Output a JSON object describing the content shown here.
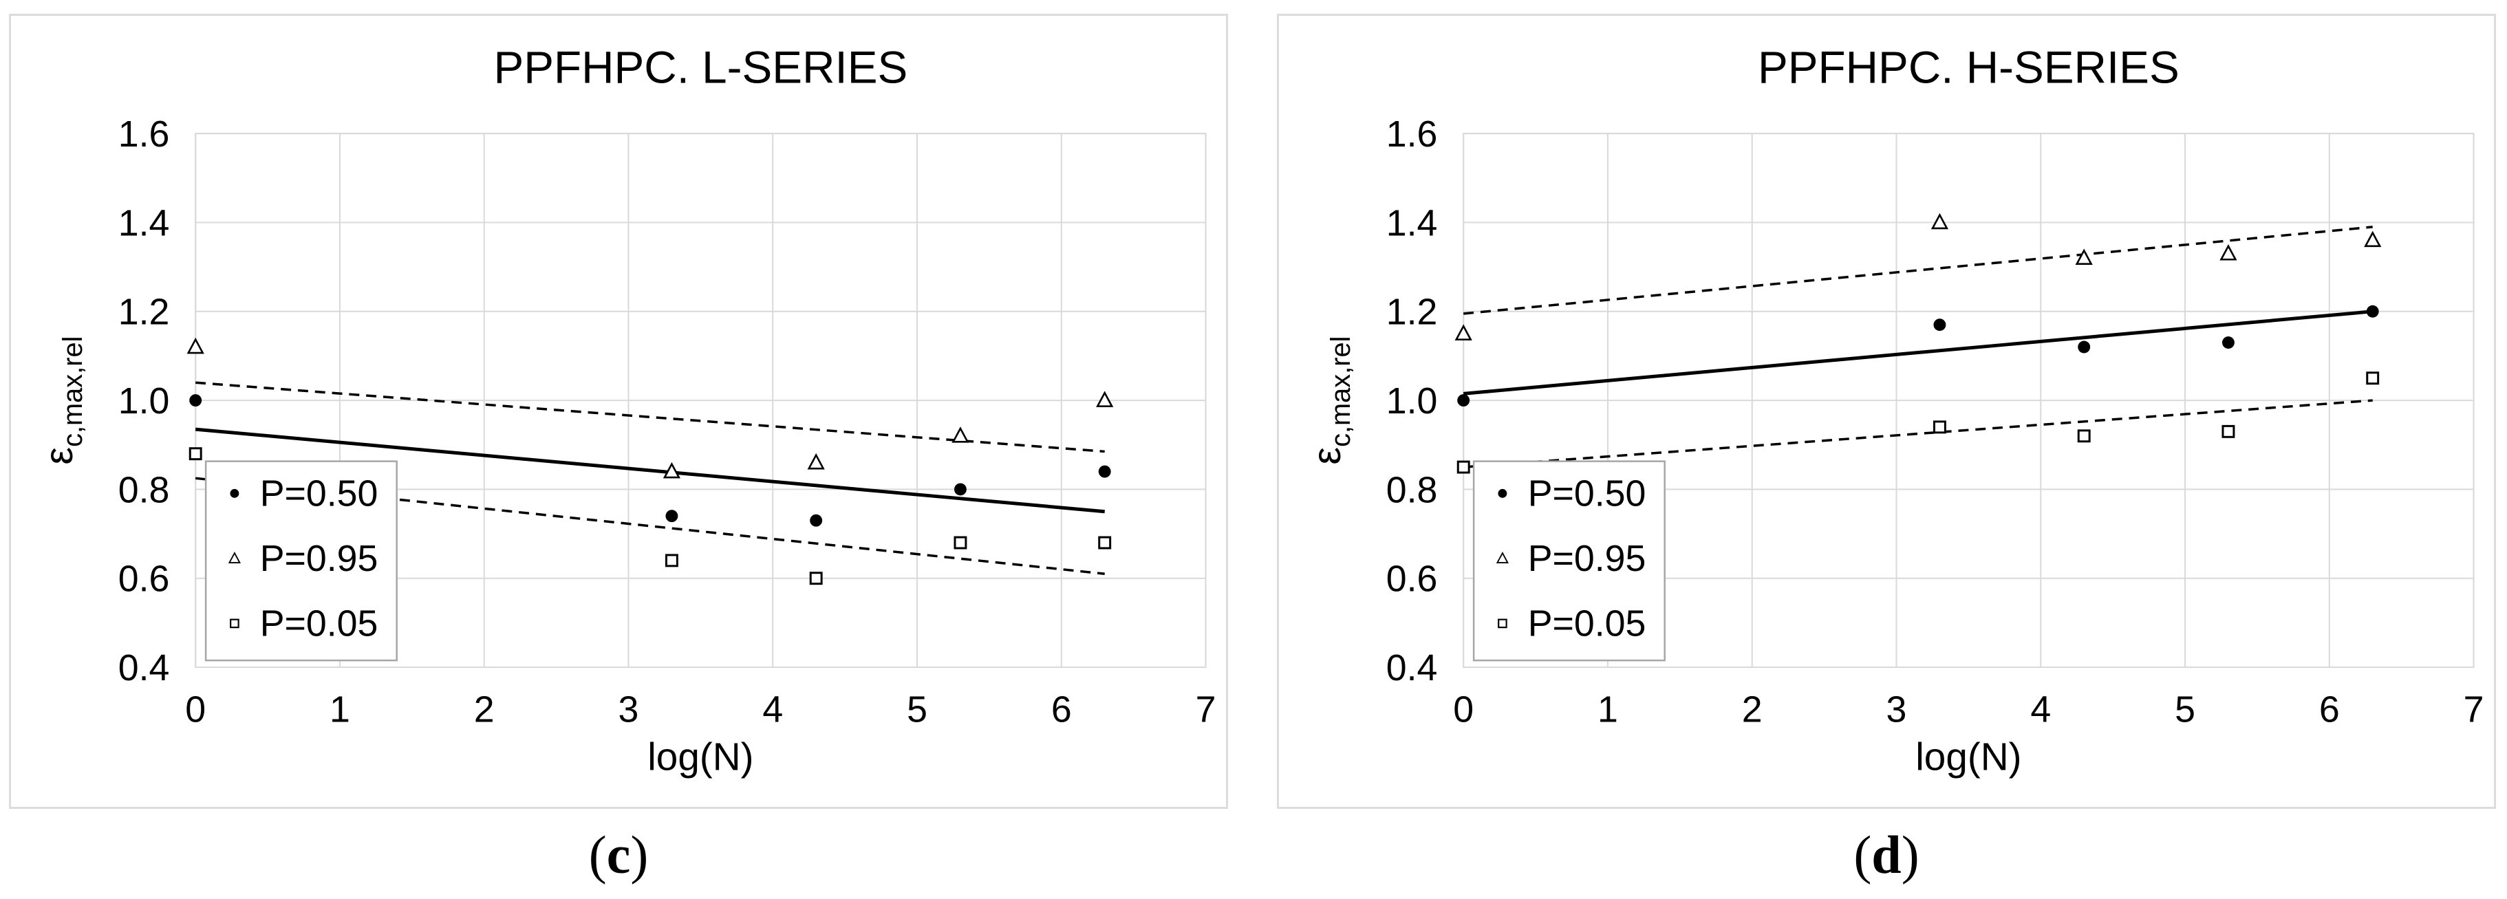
{
  "figure": {
    "background_color": "#ffffff",
    "panel_border_color": "#dcdcdc",
    "gridline_color": "#d9d9d9",
    "legend_border_color": "#a6a6a6",
    "marker_color": "#000000",
    "ylabel_base": "ε",
    "ylabel_sub": "c,max,rel",
    "captions": [
      {
        "open": "(",
        "letter": "c",
        "close": ")"
      },
      {
        "open": "(",
        "letter": "d",
        "close": ")"
      }
    ]
  },
  "chart_data": [
    {
      "type": "scatter",
      "title": "PPFHPC. L-SERIES",
      "xlabel": "log(N)",
      "ylabel": "εc,max,rel",
      "xlim": [
        0,
        7
      ],
      "ylim": [
        0.4,
        1.6
      ],
      "xticks": [
        0,
        1,
        2,
        3,
        4,
        5,
        6,
        7
      ],
      "yticks": [
        0.4,
        0.6,
        0.8,
        1.0,
        1.2,
        1.4,
        1.6
      ],
      "grid": true,
      "legend": {
        "position": "lower-left",
        "entries": [
          "P=0.50",
          "P=0.95",
          "P=0.05"
        ]
      },
      "x": [
        0,
        3.3,
        4.3,
        5.3,
        6.3
      ],
      "series": [
        {
          "name": "P=0.50",
          "marker": "filled-circle",
          "values": [
            1.0,
            0.74,
            0.73,
            0.8,
            0.84
          ]
        },
        {
          "name": "P=0.95",
          "marker": "open-triangle",
          "values": [
            1.12,
            0.84,
            0.86,
            0.92,
            1.0
          ]
        },
        {
          "name": "P=0.05",
          "marker": "open-square",
          "values": [
            0.88,
            0.64,
            0.6,
            0.68,
            0.68
          ]
        }
      ],
      "trend_lines": [
        {
          "series": "P=0.50",
          "style": "solid",
          "points": [
            [
              0,
              0.935
            ],
            [
              6.3,
              0.75
            ]
          ]
        },
        {
          "series": "P=0.95",
          "style": "dashed",
          "points": [
            [
              0,
              1.04
            ],
            [
              6.3,
              0.885
            ]
          ]
        },
        {
          "series": "P=0.05",
          "style": "dashed",
          "points": [
            [
              0,
              0.825
            ],
            [
              6.3,
              0.61
            ]
          ]
        }
      ]
    },
    {
      "type": "scatter",
      "title": "PPFHPC. H-SERIES",
      "xlabel": "log(N)",
      "ylabel": "εc,max,rel",
      "xlim": [
        0,
        7
      ],
      "ylim": [
        0.4,
        1.6
      ],
      "xticks": [
        0,
        1,
        2,
        3,
        4,
        5,
        6,
        7
      ],
      "yticks": [
        0.4,
        0.6,
        0.8,
        1.0,
        1.2,
        1.4,
        1.6
      ],
      "grid": true,
      "legend": {
        "position": "lower-left",
        "entries": [
          "P=0.50",
          "P=0.95",
          "P=0.05"
        ]
      },
      "x": [
        0,
        3.3,
        4.3,
        5.3,
        6.3
      ],
      "series": [
        {
          "name": "P=0.50",
          "marker": "filled-circle",
          "values": [
            1.0,
            1.17,
            1.12,
            1.13,
            1.2
          ]
        },
        {
          "name": "P=0.95",
          "marker": "open-triangle",
          "values": [
            1.15,
            1.4,
            1.32,
            1.33,
            1.36
          ]
        },
        {
          "name": "P=0.05",
          "marker": "open-square",
          "values": [
            0.85,
            0.94,
            0.92,
            0.93,
            1.05
          ]
        }
      ],
      "trend_lines": [
        {
          "series": "P=0.50",
          "style": "solid",
          "points": [
            [
              0,
              1.015
            ],
            [
              6.3,
              1.2
            ]
          ]
        },
        {
          "series": "P=0.95",
          "style": "dashed",
          "points": [
            [
              0,
              1.195
            ],
            [
              6.3,
              1.39
            ]
          ]
        },
        {
          "series": "P=0.05",
          "style": "dashed",
          "points": [
            [
              0,
              0.85
            ],
            [
              6.3,
              1.0
            ]
          ]
        }
      ]
    }
  ]
}
